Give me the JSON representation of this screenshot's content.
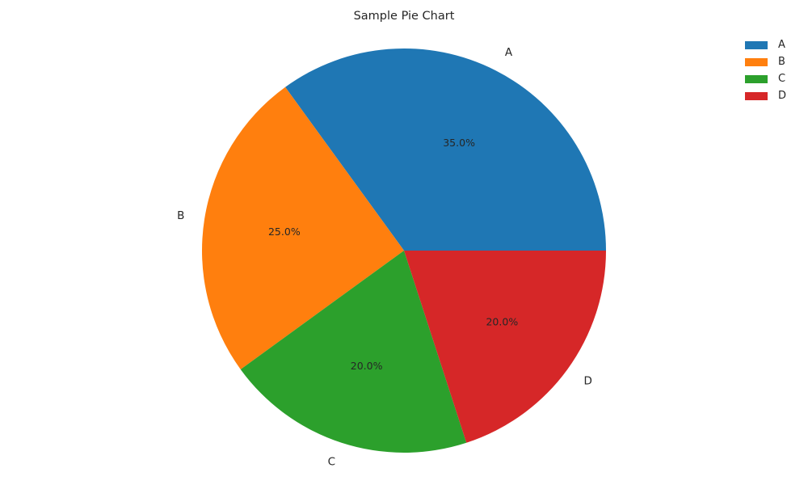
{
  "chart_data": {
    "type": "pie",
    "title": "Sample Pie Chart",
    "categories": [
      "A",
      "B",
      "C",
      "D"
    ],
    "values": [
      35,
      25,
      20,
      20
    ],
    "percent_labels": [
      "35.0%",
      "25.0%",
      "20.0%",
      "20.0%"
    ],
    "colors": [
      "#1f77b4",
      "#ff7f0e",
      "#2ca02c",
      "#d62728"
    ],
    "legend": {
      "placement": "top-right",
      "entries": [
        "A",
        "B",
        "C",
        "D"
      ]
    },
    "direction": "counterclockwise",
    "start_angle_deg": 0
  }
}
